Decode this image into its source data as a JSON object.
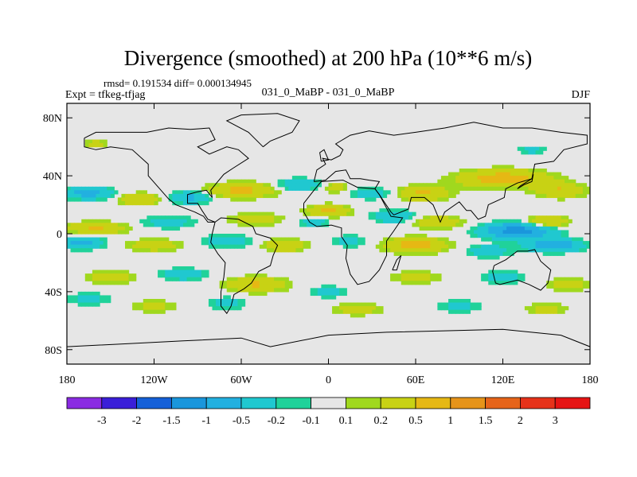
{
  "chart_data": {
    "type": "heatmap",
    "title": "Divergence (smoothed) at 200 hPa (10**6 m/s)",
    "stats": "rmsd= 0.191534 diff= 0.000134945",
    "experiment": "Expt = tfkeg-tfjag",
    "comparison": "031_0_MaBP - 031_0_MaBP",
    "season": "DJF",
    "projection": "cylindrical-equidistant",
    "xlim": [
      -180,
      180
    ],
    "ylim": [
      -90,
      90
    ],
    "grid": false,
    "legend": "bottom-labelbar",
    "x_ticks": [
      {
        "value": -180,
        "label": "180"
      },
      {
        "value": -120,
        "label": "120W"
      },
      {
        "value": -60,
        "label": "60W"
      },
      {
        "value": 0,
        "label": "0"
      },
      {
        "value": 60,
        "label": "60E"
      },
      {
        "value": 120,
        "label": "120E"
      },
      {
        "value": 180,
        "label": "180"
      }
    ],
    "y_ticks": [
      {
        "value": 80,
        "label": "80N"
      },
      {
        "value": 40,
        "label": "40N"
      },
      {
        "value": 0,
        "label": "0"
      },
      {
        "value": -40,
        "label": "40S"
      },
      {
        "value": -80,
        "label": "80S"
      }
    ],
    "contour_levels": [
      {
        "label": "-3",
        "value": -3
      },
      {
        "label": "-2",
        "value": -2
      },
      {
        "label": "-1.5",
        "value": -1.5
      },
      {
        "label": "-1",
        "value": -1
      },
      {
        "label": "-0.5",
        "value": -0.5
      },
      {
        "label": "-0.2",
        "value": -0.2
      },
      {
        "label": "-0.1",
        "value": -0.1
      },
      {
        "label": "0.1",
        "value": 0.1
      },
      {
        "label": "0.2",
        "value": 0.2
      },
      {
        "label": "0.5",
        "value": 0.5
      },
      {
        "label": "1",
        "value": 1
      },
      {
        "label": "1.5",
        "value": 1.5
      },
      {
        "label": "2",
        "value": 2
      },
      {
        "label": "3",
        "value": 3
      }
    ],
    "colors": [
      "#8a2be2",
      "#3a1fd8",
      "#1560d8",
      "#1a96dc",
      "#22b0e0",
      "#20c8d0",
      "#20d29a",
      "#e6e6e6",
      "#a0d81e",
      "#c8d214",
      "#e6b814",
      "#e6941a",
      "#e6641a",
      "#e6321a",
      "#e61414"
    ],
    "background_color": "#e6e6e6",
    "features": [
      {
        "lon": -60,
        "lat": 30,
        "sx": 22,
        "sy": 5,
        "v": 0.6
      },
      {
        "lon": -20,
        "lat": 34,
        "sx": 14,
        "sy": 4,
        "v": -0.5
      },
      {
        "lon": 5,
        "lat": 32,
        "sx": 10,
        "sy": 4,
        "v": 0.3
      },
      {
        "lon": 30,
        "lat": 28,
        "sx": 16,
        "sy": 4,
        "v": -0.35
      },
      {
        "lon": 65,
        "lat": 28,
        "sx": 18,
        "sy": 5,
        "v": 0.55
      },
      {
        "lon": 120,
        "lat": 38,
        "sx": 30,
        "sy": 6,
        "v": 0.7
      },
      {
        "lon": 160,
        "lat": 30,
        "sx": 16,
        "sy": 5,
        "v": 0.5
      },
      {
        "lon": -165,
        "lat": 28,
        "sx": 16,
        "sy": 4,
        "v": -0.7
      },
      {
        "lon": -130,
        "lat": 24,
        "sx": 14,
        "sy": 4,
        "v": 0.5
      },
      {
        "lon": -95,
        "lat": 25,
        "sx": 14,
        "sy": 4,
        "v": -0.6
      },
      {
        "lon": -160,
        "lat": 4,
        "sx": 20,
        "sy": 4,
        "v": 0.55
      },
      {
        "lon": -110,
        "lat": 8,
        "sx": 18,
        "sy": 4,
        "v": -0.35
      },
      {
        "lon": -50,
        "lat": 10,
        "sx": 16,
        "sy": 4,
        "v": 0.45
      },
      {
        "lon": 0,
        "lat": 16,
        "sx": 14,
        "sy": 4,
        "v": 0.6
      },
      {
        "lon": -10,
        "lat": 8,
        "sx": 10,
        "sy": 3,
        "v": -0.35
      },
      {
        "lon": 45,
        "lat": 12,
        "sx": 14,
        "sy": 4,
        "v": -0.5
      },
      {
        "lon": 75,
        "lat": 8,
        "sx": 16,
        "sy": 4,
        "v": 0.5
      },
      {
        "lon": 130,
        "lat": 2,
        "sx": 22,
        "sy": 5,
        "v": -1.3
      },
      {
        "lon": 150,
        "lat": 8,
        "sx": 14,
        "sy": 4,
        "v": 0.6
      },
      {
        "lon": -170,
        "lat": -6,
        "sx": 14,
        "sy": 4,
        "v": -0.7
      },
      {
        "lon": -120,
        "lat": -8,
        "sx": 18,
        "sy": 4,
        "v": 0.4
      },
      {
        "lon": -70,
        "lat": -5,
        "sx": 16,
        "sy": 4,
        "v": -0.45
      },
      {
        "lon": -30,
        "lat": -8,
        "sx": 14,
        "sy": 4,
        "v": 0.5
      },
      {
        "lon": 15,
        "lat": -5,
        "sx": 12,
        "sy": 4,
        "v": -0.3
      },
      {
        "lon": 60,
        "lat": -8,
        "sx": 20,
        "sy": 5,
        "v": 0.7
      },
      {
        "lon": 110,
        "lat": -12,
        "sx": 14,
        "sy": 4,
        "v": -0.45
      },
      {
        "lon": 155,
        "lat": -8,
        "sx": 18,
        "sy": 4,
        "v": -0.9
      },
      {
        "lon": -150,
        "lat": -30,
        "sx": 16,
        "sy": 4,
        "v": 0.4
      },
      {
        "lon": -100,
        "lat": -28,
        "sx": 16,
        "sy": 4,
        "v": -0.4
      },
      {
        "lon": -50,
        "lat": -35,
        "sx": 20,
        "sy": 5,
        "v": 0.55
      },
      {
        "lon": 0,
        "lat": -40,
        "sx": 12,
        "sy": 4,
        "v": -0.3
      },
      {
        "lon": 60,
        "lat": -30,
        "sx": 16,
        "sy": 4,
        "v": 0.35
      },
      {
        "lon": 120,
        "lat": -30,
        "sx": 14,
        "sy": 4,
        "v": -0.4
      },
      {
        "lon": 165,
        "lat": -35,
        "sx": 14,
        "sy": 4,
        "v": 0.4
      },
      {
        "lon": -165,
        "lat": -45,
        "sx": 14,
        "sy": 4,
        "v": -0.3
      },
      {
        "lon": -120,
        "lat": -50,
        "sx": 14,
        "sy": 4,
        "v": 0.3
      },
      {
        "lon": -70,
        "lat": -48,
        "sx": 12,
        "sy": 4,
        "v": -0.35
      },
      {
        "lon": 20,
        "lat": -52,
        "sx": 16,
        "sy": 4,
        "v": 0.35
      },
      {
        "lon": 90,
        "lat": -50,
        "sx": 14,
        "sy": 4,
        "v": -0.3
      },
      {
        "lon": 150,
        "lat": -52,
        "sx": 14,
        "sy": 4,
        "v": 0.3
      },
      {
        "lon": -160,
        "lat": 62,
        "sx": 8,
        "sy": 3,
        "v": 0.3
      },
      {
        "lon": 140,
        "lat": 58,
        "sx": 10,
        "sy": 3,
        "v": -0.3
      }
    ],
    "coastlines": [
      [
        [
          -168,
          66
        ],
        [
          -160,
          70
        ],
        [
          -140,
          70
        ],
        [
          -125,
          70
        ],
        [
          -110,
          73
        ],
        [
          -95,
          72
        ],
        [
          -82,
          73
        ],
        [
          -78,
          65
        ],
        [
          -90,
          60
        ],
        [
          -82,
          55
        ],
        [
          -70,
          60
        ],
        [
          -62,
          58
        ],
        [
          -55,
          52
        ],
        [
          -66,
          45
        ],
        [
          -72,
          41
        ],
        [
          -77,
          35
        ],
        [
          -81,
          30
        ],
        [
          -80,
          25
        ],
        [
          -84,
          30
        ],
        [
          -90,
          29
        ],
        [
          -97,
          27
        ],
        [
          -97,
          21
        ],
        [
          -90,
          21
        ],
        [
          -87,
          16
        ],
        [
          -83,
          10
        ],
        [
          -78,
          8
        ],
        [
          -83,
          8
        ],
        [
          -86,
          12
        ],
        [
          -92,
          15
        ],
        [
          -105,
          20
        ],
        [
          -110,
          24
        ],
        [
          -117,
          32
        ],
        [
          -124,
          40
        ],
        [
          -124,
          48
        ],
        [
          -135,
          58
        ],
        [
          -150,
          60
        ],
        [
          -160,
          58
        ],
        [
          -168,
          60
        ],
        [
          -168,
          66
        ]
      ],
      [
        [
          -78,
          8
        ],
        [
          -74,
          11
        ],
        [
          -62,
          10
        ],
        [
          -52,
          5
        ],
        [
          -50,
          0
        ],
        [
          -40,
          -3
        ],
        [
          -35,
          -8
        ],
        [
          -38,
          -15
        ],
        [
          -40,
          -22
        ],
        [
          -48,
          -26
        ],
        [
          -53,
          -34
        ],
        [
          -58,
          -38
        ],
        [
          -65,
          -42
        ],
        [
          -67,
          -50
        ],
        [
          -70,
          -55
        ],
        [
          -74,
          -50
        ],
        [
          -74,
          -40
        ],
        [
          -72,
          -30
        ],
        [
          -71,
          -20
        ],
        [
          -76,
          -14
        ],
        [
          -81,
          -6
        ],
        [
          -80,
          0
        ],
        [
          -78,
          8
        ]
      ],
      [
        [
          -10,
          36
        ],
        [
          -8,
          44
        ],
        [
          -2,
          48
        ],
        [
          -4,
          52
        ],
        [
          2,
          51
        ],
        [
          8,
          54
        ],
        [
          10,
          58
        ],
        [
          5,
          62
        ],
        [
          15,
          68
        ],
        [
          28,
          71
        ],
        [
          45,
          68
        ],
        [
          60,
          70
        ],
        [
          80,
          73
        ],
        [
          100,
          77
        ],
        [
          120,
          73
        ],
        [
          140,
          73
        ],
        [
          160,
          70
        ],
        [
          178,
          68
        ],
        [
          178,
          62
        ],
        [
          162,
          58
        ],
        [
          155,
          50
        ],
        [
          142,
          48
        ],
        [
          140,
          38
        ],
        [
          130,
          35
        ],
        [
          122,
          31
        ],
        [
          121,
          25
        ],
        [
          110,
          20
        ],
        [
          108,
          12
        ],
        [
          103,
          10
        ],
        [
          98,
          16
        ],
        [
          95,
          16
        ],
        [
          90,
          22
        ],
        [
          80,
          15
        ],
        [
          77,
          8
        ],
        [
          72,
          20
        ],
        [
          66,
          25
        ],
        [
          57,
          25
        ],
        [
          55,
          17
        ],
        [
          45,
          13
        ],
        [
          43,
          15
        ],
        [
          35,
          27
        ],
        [
          32,
          31
        ],
        [
          35,
          36
        ],
        [
          28,
          37
        ],
        [
          22,
          38
        ],
        [
          15,
          38
        ],
        [
          12,
          44
        ],
        [
          5,
          43
        ],
        [
          -2,
          37
        ],
        [
          -10,
          36
        ]
      ],
      [
        [
          -17,
          21
        ],
        [
          -10,
          30
        ],
        [
          -5,
          36
        ],
        [
          10,
          37
        ],
        [
          20,
          32
        ],
        [
          32,
          31
        ],
        [
          35,
          27
        ],
        [
          43,
          12
        ],
        [
          51,
          11
        ],
        [
          45,
          2
        ],
        [
          40,
          -5
        ],
        [
          40,
          -15
        ],
        [
          35,
          -25
        ],
        [
          28,
          -33
        ],
        [
          20,
          -35
        ],
        [
          15,
          -28
        ],
        [
          12,
          -17
        ],
        [
          13,
          -8
        ],
        [
          9,
          -2
        ],
        [
          9,
          4
        ],
        [
          2,
          6
        ],
        [
          -8,
          5
        ],
        [
          -13,
          8
        ],
        [
          -17,
          15
        ],
        [
          -17,
          21
        ]
      ],
      [
        [
          114,
          -22
        ],
        [
          122,
          -18
        ],
        [
          130,
          -12
        ],
        [
          137,
          -12
        ],
        [
          142,
          -11
        ],
        [
          146,
          -19
        ],
        [
          153,
          -25
        ],
        [
          151,
          -34
        ],
        [
          146,
          -39
        ],
        [
          138,
          -35
        ],
        [
          130,
          -32
        ],
        [
          118,
          -35
        ],
        [
          115,
          -34
        ],
        [
          113,
          -26
        ],
        [
          114,
          -22
        ]
      ],
      [
        [
          -180,
          -78
        ],
        [
          -140,
          -76
        ],
        [
          -100,
          -74
        ],
        [
          -60,
          -72
        ],
        [
          -40,
          -78
        ],
        [
          0,
          -70
        ],
        [
          40,
          -68
        ],
        [
          80,
          -67
        ],
        [
          120,
          -66
        ],
        [
          160,
          -70
        ],
        [
          180,
          -78
        ]
      ],
      [
        [
          -45,
          60
        ],
        [
          -40,
          64
        ],
        [
          -25,
          70
        ],
        [
          -20,
          78
        ],
        [
          -35,
          83
        ],
        [
          -60,
          82
        ],
        [
          -70,
          78
        ],
        [
          -55,
          70
        ],
        [
          -45,
          60
        ]
      ],
      [
        [
          44,
          -25
        ],
        [
          47,
          -18
        ],
        [
          50,
          -15
        ],
        [
          47,
          -25
        ],
        [
          44,
          -25
        ]
      ],
      [
        [
          130,
          31
        ],
        [
          135,
          34
        ],
        [
          140,
          36
        ],
        [
          141,
          41
        ],
        [
          140,
          38
        ],
        [
          132,
          33
        ],
        [
          130,
          31
        ]
      ],
      [
        [
          -5,
          50
        ],
        [
          0,
          51
        ],
        [
          -3,
          58
        ],
        [
          -6,
          56
        ],
        [
          -5,
          50
        ]
      ]
    ]
  }
}
